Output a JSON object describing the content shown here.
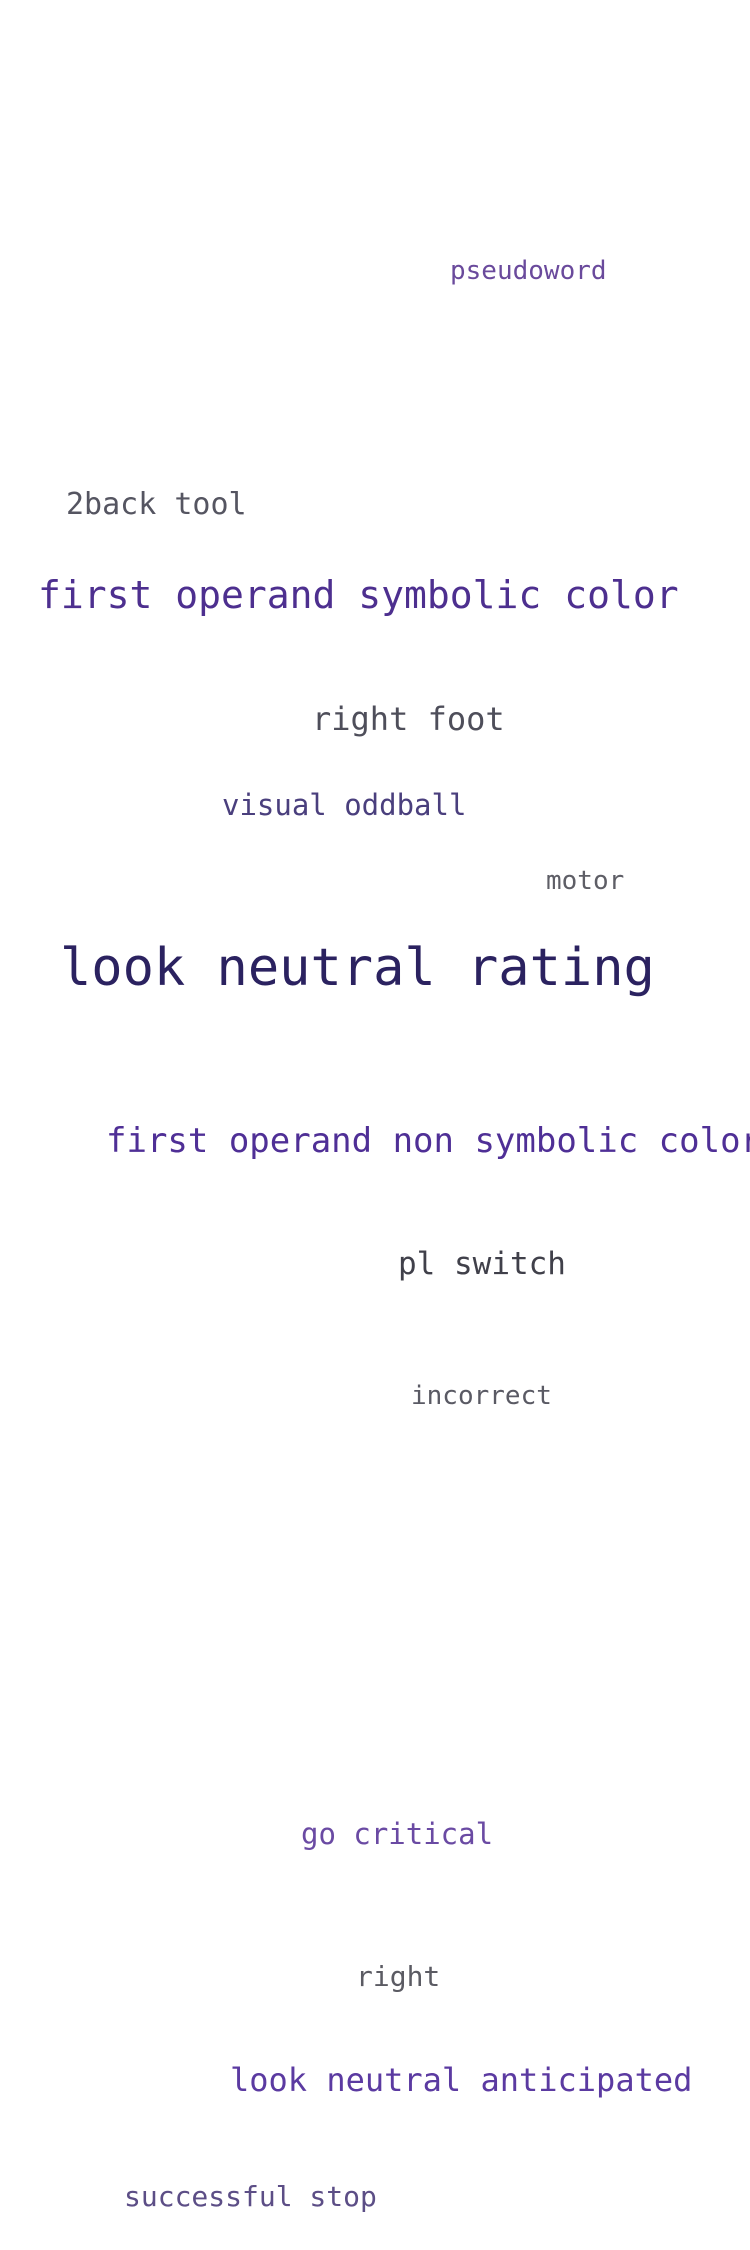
{
  "terms": [
    {
      "text": "pseudoword",
      "color": "#6a4a9c"
    },
    {
      "text": "2back tool",
      "color": "#555561"
    },
    {
      "text": "first operand symbolic color",
      "color": "#4d2f8f"
    },
    {
      "text": "right foot",
      "color": "#4e4e5a"
    },
    {
      "text": "visual oddball",
      "color": "#4a3f7d"
    },
    {
      "text": "motor",
      "color": "#5e5e66"
    },
    {
      "text": "look neutral rating",
      "color": "#2b2260"
    },
    {
      "text": "first operand non symbolic color",
      "color": "#4f2f96"
    },
    {
      "text": "pl switch",
      "color": "#40404a"
    },
    {
      "text": "incorrect",
      "color": "#5a5a64"
    },
    {
      "text": "go critical",
      "color": "#6a4aa3"
    },
    {
      "text": "right",
      "color": "#5b5b63"
    },
    {
      "text": "look neutral anticipated",
      "color": "#5b3aa1"
    },
    {
      "text": "successful stop",
      "color": "#5c4e86"
    }
  ]
}
